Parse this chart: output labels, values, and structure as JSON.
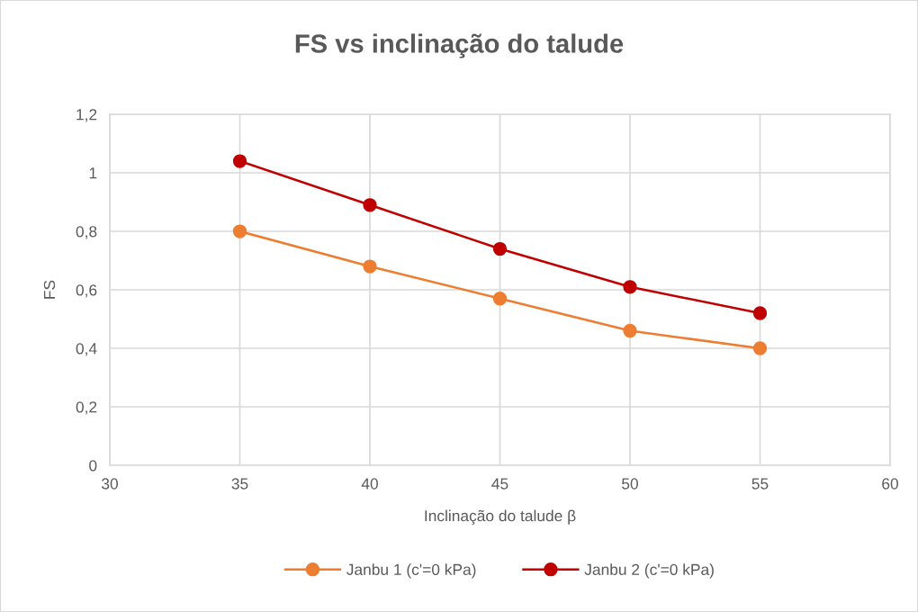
{
  "chart_data": {
    "type": "line",
    "title": "FS vs inclinação do talude",
    "xlabel": "Inclinação do talude β",
    "ylabel": "FS",
    "x": [
      35,
      40,
      45,
      50,
      55
    ],
    "series": [
      {
        "name": "Janbu 1 (c'=0 kPa)",
        "color": "#ed7d31",
        "values": [
          0.8,
          0.68,
          0.57,
          0.46,
          0.4
        ]
      },
      {
        "name": "Janbu 2 (c'=0 kPa)",
        "color": "#c00000",
        "values": [
          1.04,
          0.89,
          0.74,
          0.61,
          0.52
        ]
      }
    ],
    "xlim": [
      30,
      60
    ],
    "xticks": [
      30,
      35,
      40,
      45,
      50,
      55,
      60
    ],
    "ylim": [
      0,
      1.2
    ],
    "yticks": [
      0,
      {
        "value": 0.2,
        "label": "0,2"
      },
      {
        "value": 0.4,
        "label": "0,4"
      },
      {
        "value": 0.6,
        "label": "0,6"
      },
      {
        "value": 0.8,
        "label": "0,8"
      },
      1,
      {
        "value": 1.2,
        "label": "1,2"
      }
    ],
    "grid": true,
    "legend": "bottom",
    "marker": "circle",
    "line_style": "solid"
  }
}
